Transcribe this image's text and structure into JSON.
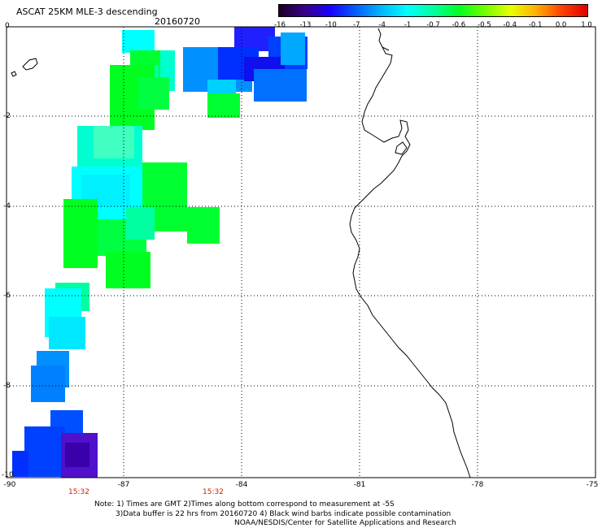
{
  "header": {
    "title": "ASCAT 25KM MLE-3 descending",
    "date": "20160720"
  },
  "colorbar": {
    "tick_labels": [
      "-16",
      "-13",
      "-10",
      "-7",
      "-4",
      "-1",
      "-0.7",
      "-0.6",
      "-0.5",
      "-0.4",
      "-0.1",
      "0.0",
      "1.0"
    ],
    "colors": [
      "#1a0026",
      "#3a0088",
      "#1800ff",
      "#0060ff",
      "#00b8ff",
      "#00ffff",
      "#00ffa0",
      "#00ff20",
      "#70ff00",
      "#e8ff00",
      "#ffb000",
      "#ff4000",
      "#e00000"
    ]
  },
  "axes": {
    "x_labels": [
      "-90",
      "-87",
      "-84",
      "-81",
      "-78",
      "-75"
    ],
    "y_labels": [
      "0",
      "-2",
      "-4",
      "-6",
      "-8",
      "-10"
    ],
    "time_labels": [
      "15:32",
      "15:32"
    ]
  },
  "footer": {
    "note_line1": "Note: 1) Times are GMT 2)Times along bottom correspond to measurement at -5S",
    "note_line2": "3)Data buffer is 22 hrs from 20160720 4) Black wind barbs indicate possible contamination",
    "note_line3": "NOAA/NESDIS/Center for Satellite Applications and Research"
  }
}
